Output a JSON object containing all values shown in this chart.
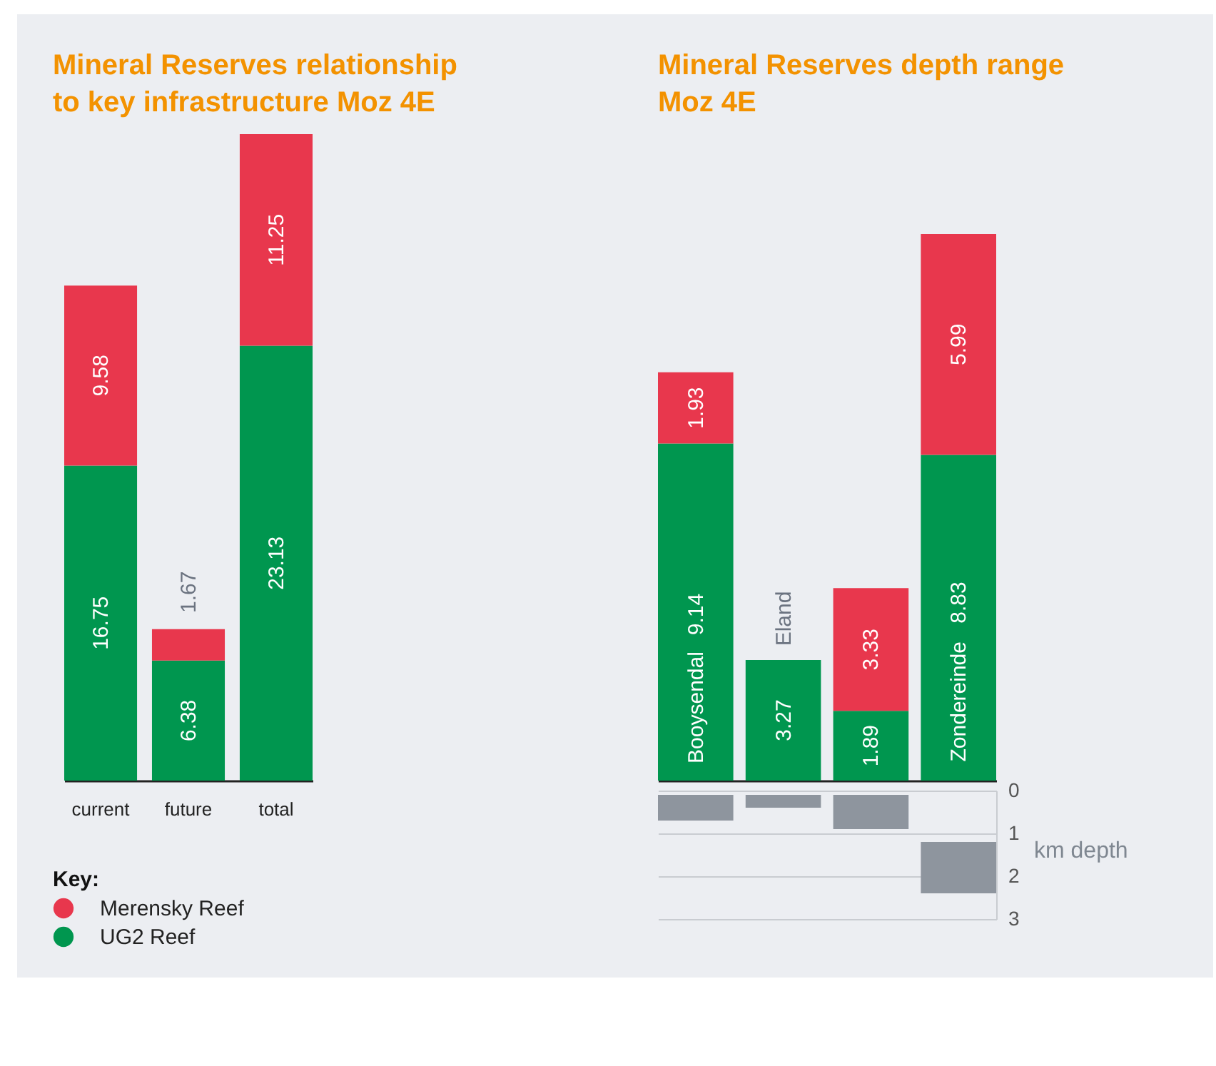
{
  "chart_data": [
    {
      "type": "bar",
      "title": "Mineral Reserves relationship to key infrastructure Moz 4E",
      "categories": [
        "current",
        "future",
        "total"
      ],
      "stacked": true,
      "data_labels": true,
      "legend": "bottom left",
      "legend_title": "Key:",
      "marker": "circle",
      "series": [
        {
          "name": "UG2 Reef",
          "color": "#00964f",
          "values": [
            16.75,
            6.38,
            23.13
          ]
        },
        {
          "name": "Merensky Reef",
          "color": "#e8374d",
          "values": [
            9.58,
            1.67,
            11.25
          ]
        }
      ]
    },
    {
      "type": "bar",
      "title": "Mineral Reserves depth range Moz 4E",
      "categories": [
        "Booysendal",
        "Eland",
        null,
        "Zondereinde"
      ],
      "stacked": true,
      "data_labels": true,
      "tick_labels": false,
      "series": [
        {
          "color": "#00964f",
          "values": [
            9.14,
            3.27,
            1.89,
            8.83
          ]
        },
        {
          "color": "#e8374d",
          "values": [
            1.93,
            null,
            3.33,
            5.99
          ]
        }
      ]
    },
    {
      "type": "bar",
      "categories": [
        null,
        null,
        null,
        null
      ],
      "base": [
        0.1,
        0.1,
        0.1,
        1.2
      ],
      "values": [
        0.6,
        0.3,
        0.8,
        1.2
      ],
      "color": "#8e959e",
      "ylim": [
        3,
        0
      ],
      "yticks": [
        0,
        1,
        2,
        3
      ],
      "ylabel": "km depth",
      "grid": "y",
      "tick_labels": "y"
    }
  ]
}
